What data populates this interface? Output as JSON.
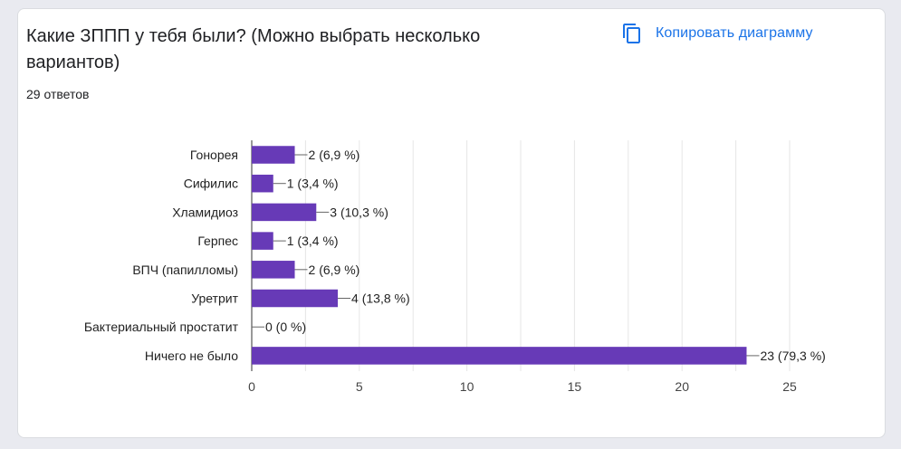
{
  "card": {
    "title": "Какие ЗППП у тебя были?  (Можно выбрать несколько вариантов)",
    "responses": "29 ответов",
    "copy_label": "Копировать диаграмму",
    "copy_icon": "copy-icon"
  },
  "colors": {
    "bar": "#673ab7",
    "accent": "#1a73e8",
    "grid": "#e6e6e6"
  },
  "chart_data": {
    "type": "bar",
    "orientation": "horizontal",
    "categories": [
      "Гонорея",
      "Сифилис",
      "Хламидиоз",
      "Герпес",
      "ВПЧ (папилломы)",
      "Уретрит",
      "Бактериальный простатит",
      "Ничего не было"
    ],
    "values": [
      2,
      1,
      3,
      1,
      2,
      4,
      0,
      23
    ],
    "data_labels": [
      "2 (6,9 %)",
      "1 (3,4 %)",
      "3 (10,3 %)",
      "1 (3,4 %)",
      "2 (6,9 %)",
      "4 (13,8 %)",
      "0 (0 %)",
      "23 (79,3 %)"
    ],
    "xlim": [
      0,
      25
    ],
    "x_ticks": [
      0,
      5,
      10,
      15,
      20,
      25
    ],
    "grid": true,
    "legend": "none"
  }
}
